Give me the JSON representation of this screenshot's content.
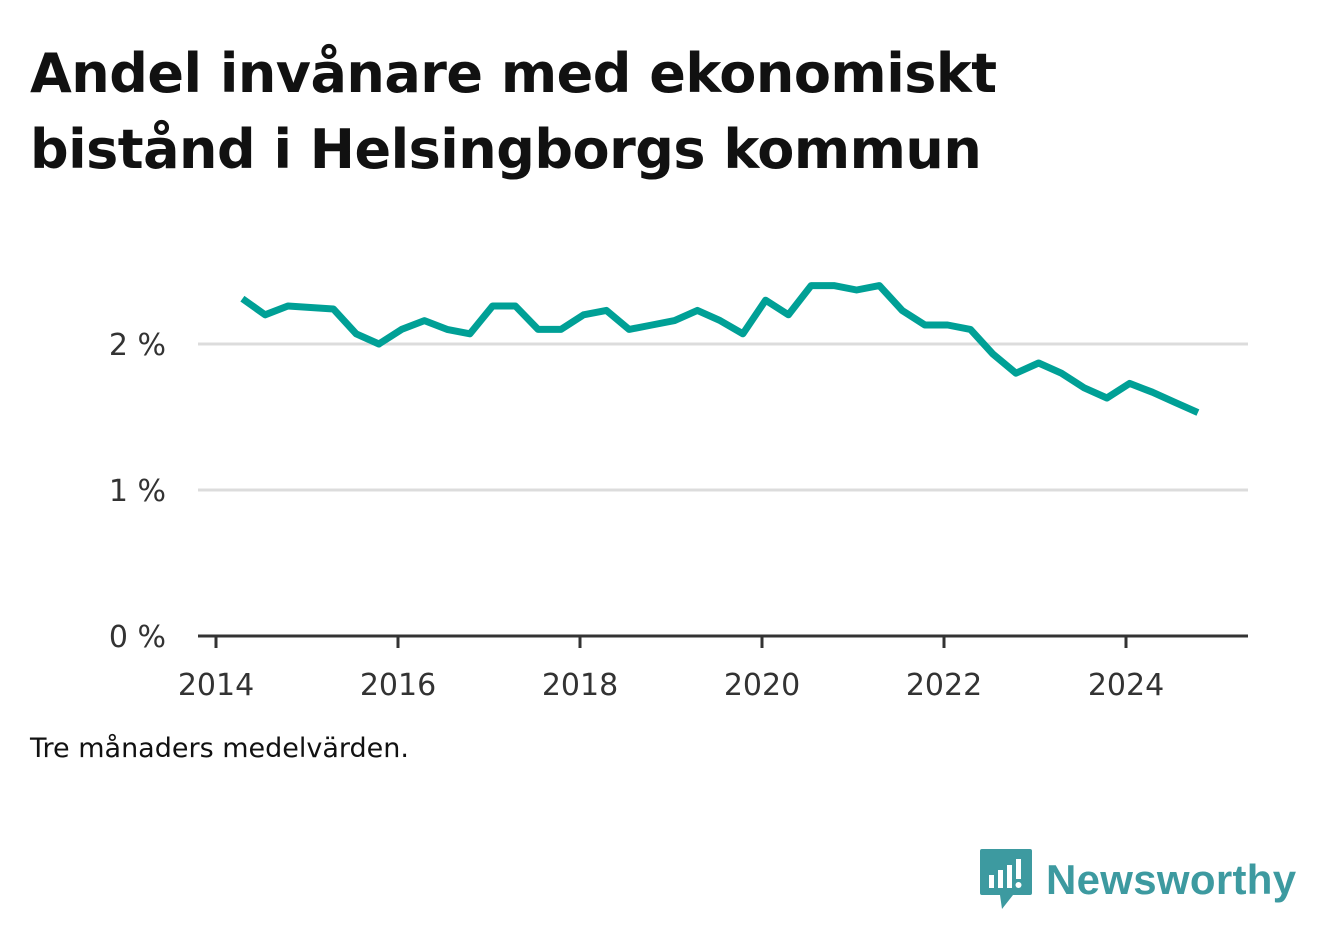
{
  "title": "Andel invånare med ekonomiskt bistånd i Helsingborgs kommun",
  "note": "Tre månaders medelvärden.",
  "brand": {
    "name": "Newsworthy",
    "icon": "newsworthy-logo-icon",
    "color": "#3d9aa0"
  },
  "chart_data": {
    "type": "line",
    "title": "Andel invånare med ekonomiskt bistånd i Helsingborgs kommun",
    "xlabel": "",
    "ylabel": "",
    "xlim": [
      2014.0,
      2025.4
    ],
    "ylim": [
      0,
      2.75
    ],
    "x_ticks": [
      {
        "value": 2014,
        "label": "2014"
      },
      {
        "value": 2016,
        "label": "2016"
      },
      {
        "value": 2018,
        "label": "2018"
      },
      {
        "value": 2020,
        "label": "2020"
      },
      {
        "value": 2022,
        "label": "2022"
      },
      {
        "value": 2024,
        "label": "2024"
      }
    ],
    "y_ticks": [
      {
        "value": 0,
        "label": "0 %"
      },
      {
        "value": 1,
        "label": "1 %"
      },
      {
        "value": 2,
        "label": "2 %"
      }
    ],
    "grid": true,
    "line_color": "#00a096",
    "x": [
      2014.29,
      2014.54,
      2014.79,
      2015.04,
      2015.29,
      2015.54,
      2015.79,
      2016.04,
      2016.29,
      2016.54,
      2016.79,
      2017.04,
      2017.29,
      2017.54,
      2017.79,
      2018.04,
      2018.29,
      2018.54,
      2018.79,
      2019.04,
      2019.29,
      2019.54,
      2019.79,
      2020.04,
      2020.29,
      2020.54,
      2020.79,
      2021.04,
      2021.29,
      2021.54,
      2021.79,
      2022.04,
      2022.29,
      2022.54,
      2022.79,
      2023.04,
      2023.29,
      2023.54,
      2023.79,
      2024.04,
      2024.29,
      2024.54,
      2024.79
    ],
    "series": [
      {
        "values": [
          2.31,
          2.2,
          2.26,
          2.25,
          2.24,
          2.07,
          2.0,
          2.1,
          2.16,
          2.1,
          2.07,
          2.26,
          2.26,
          2.1,
          2.1,
          2.2,
          2.23,
          2.1,
          2.13,
          2.16,
          2.23,
          2.16,
          2.07,
          2.3,
          2.2,
          2.4,
          2.4,
          2.37,
          2.4,
          2.23,
          2.13,
          2.13,
          2.1,
          1.93,
          1.8,
          1.87,
          1.8,
          1.7,
          1.63,
          1.73,
          1.67,
          1.6,
          1.53
        ]
      }
    ]
  }
}
